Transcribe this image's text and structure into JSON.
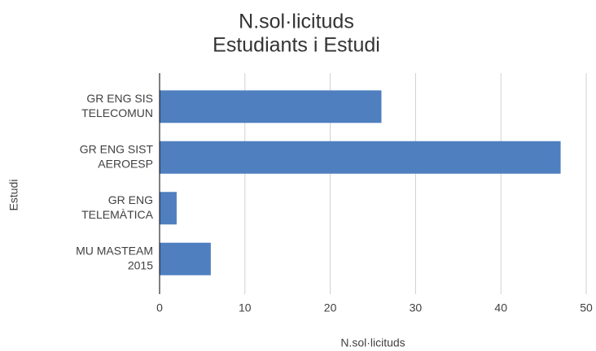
{
  "chart_data": {
    "type": "barh",
    "title": [
      "N.sol·licituds",
      "Estudiants i Estudi"
    ],
    "categories": [
      [
        "GR ENG SIS",
        "TELECOMUN"
      ],
      [
        "GR ENG SIST",
        "AEROESP"
      ],
      [
        "GR ENG",
        "TELEMÀTICA"
      ],
      [
        "MU MASTEAM",
        "2015"
      ]
    ],
    "values": [
      26,
      47,
      2,
      6
    ],
    "color": "#4f7fbf",
    "xlim": [
      0,
      50
    ],
    "xticks": [
      0,
      10,
      20,
      30,
      40,
      50
    ],
    "x_label": "N.sol·licituds",
    "y_label": "Estudi",
    "grid": true
  }
}
